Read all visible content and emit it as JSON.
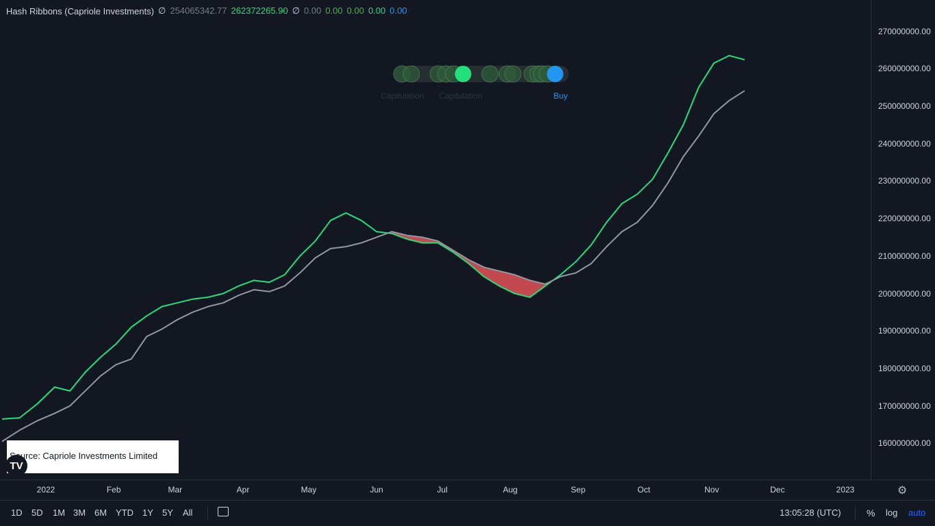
{
  "legend": {
    "title": "Hash Ribbons (Capriole Investments)",
    "values": [
      {
        "text": "∅",
        "color": "#d1d4dc"
      },
      {
        "text": "254065342.77",
        "color": "#787b86"
      },
      {
        "text": "262372265.90",
        "color": "#22e07a"
      },
      {
        "text": "∅",
        "color": "#d1d4dc"
      },
      {
        "text": "0.00",
        "color": "#787b86"
      },
      {
        "text": "0.00",
        "color": "#4caf50"
      },
      {
        "text": "0.00",
        "color": "#4caf50"
      },
      {
        "text": "0.00",
        "color": "#22e07a"
      },
      {
        "text": "0.00",
        "color": "#2196f3"
      }
    ]
  },
  "signals": {
    "labels": [
      {
        "text": "Capitulation",
        "color": "#2c3640"
      },
      {
        "text": "Capitulation",
        "color": "#2c3640"
      },
      {
        "text": "Buy",
        "color": "#2196f3"
      }
    ]
  },
  "source": {
    "text": "Source: Capriole Investments Limited",
    "logo": "TV"
  },
  "toolbar": {
    "ranges": [
      "1D",
      "5D",
      "1M",
      "3M",
      "6M",
      "YTD",
      "1Y",
      "5Y",
      "All"
    ],
    "time": "13:05:28 (UTC)",
    "percent": "%",
    "log": "log",
    "auto": "auto"
  },
  "colors": {
    "fast": "#22e07a",
    "slow": "#9598a1",
    "fill": "#f0565c",
    "buy": "#2196f3",
    "bg": "#131722"
  },
  "chart_data": {
    "type": "line",
    "title": "Hash Ribbons (Capriole Investments)",
    "y_ticks": [
      "270000000.00",
      "260000000.00",
      "250000000.00",
      "240000000.00",
      "230000000.00",
      "220000000.00",
      "210000000.00",
      "200000000.00",
      "190000000.00",
      "180000000.00",
      "170000000.00",
      "160000000.00"
    ],
    "y_tick_values": [
      270000000,
      260000000,
      250000000,
      240000000,
      230000000,
      220000000,
      210000000,
      200000000,
      190000000,
      180000000,
      170000000,
      160000000
    ],
    "x_ticks": [
      "2022",
      "Feb",
      "Mar",
      "Apr",
      "May",
      "Jun",
      "Jul",
      "Aug",
      "Sep",
      "Oct",
      "Nov",
      "Dec",
      "2023"
    ],
    "x_tick_dates": [
      "2022-01-01",
      "2022-02-01",
      "2022-03-01",
      "2022-04-01",
      "2022-05-01",
      "2022-06-01",
      "2022-07-01",
      "2022-08-01",
      "2022-09-01",
      "2022-10-01",
      "2022-11-01",
      "2022-12-01",
      "2023-01-01"
    ],
    "series": [
      {
        "name": "",
        "role": "fast",
        "color": "#22e07a",
        "points": [
          [
            "2021-12-12",
            166.5
          ],
          [
            "2021-12-20",
            166.8
          ],
          [
            "2021-12-28",
            170.5
          ],
          [
            "2022-01-05",
            175
          ],
          [
            "2022-01-12",
            174
          ],
          [
            "2022-01-19",
            179
          ],
          [
            "2022-01-26",
            183
          ],
          [
            "2022-02-02",
            186.5
          ],
          [
            "2022-02-09",
            191
          ],
          [
            "2022-02-16",
            194
          ],
          [
            "2022-02-23",
            196.5
          ],
          [
            "2022-03-02",
            197.5
          ],
          [
            "2022-03-09",
            198.5
          ],
          [
            "2022-03-16",
            199
          ],
          [
            "2022-03-23",
            200
          ],
          [
            "2022-03-30",
            202
          ],
          [
            "2022-04-06",
            203.5
          ],
          [
            "2022-04-13",
            203
          ],
          [
            "2022-04-20",
            205
          ],
          [
            "2022-04-27",
            210
          ],
          [
            "2022-05-04",
            214
          ],
          [
            "2022-05-11",
            219.5
          ],
          [
            "2022-05-18",
            221.5
          ],
          [
            "2022-05-25",
            219.5
          ],
          [
            "2022-06-01",
            216.5
          ],
          [
            "2022-06-08",
            216
          ],
          [
            "2022-06-15",
            214.5
          ],
          [
            "2022-06-22",
            213.5
          ],
          [
            "2022-06-29",
            213.5
          ],
          [
            "2022-07-06",
            211
          ],
          [
            "2022-07-13",
            208
          ],
          [
            "2022-07-20",
            204.5
          ],
          [
            "2022-07-27",
            202
          ],
          [
            "2022-08-03",
            200
          ],
          [
            "2022-08-10",
            199
          ],
          [
            "2022-08-17",
            202
          ],
          [
            "2022-08-24",
            205
          ],
          [
            "2022-08-31",
            208.5
          ],
          [
            "2022-09-07",
            213
          ],
          [
            "2022-09-14",
            219
          ],
          [
            "2022-09-21",
            224
          ],
          [
            "2022-09-28",
            226.5
          ],
          [
            "2022-10-05",
            230.5
          ],
          [
            "2022-10-12",
            237.5
          ],
          [
            "2022-10-19",
            245
          ],
          [
            "2022-10-26",
            255
          ],
          [
            "2022-11-02",
            261.5
          ],
          [
            "2022-11-09",
            263.5
          ],
          [
            "2022-11-16",
            262.4
          ]
        ]
      },
      {
        "name": "",
        "role": "slow",
        "color": "#9598a1",
        "points": [
          [
            "2021-12-12",
            160.5
          ],
          [
            "2021-12-20",
            163.5
          ],
          [
            "2021-12-28",
            166
          ],
          [
            "2022-01-05",
            168
          ],
          [
            "2022-01-12",
            170
          ],
          [
            "2022-01-19",
            174
          ],
          [
            "2022-01-26",
            178
          ],
          [
            "2022-02-02",
            181
          ],
          [
            "2022-02-09",
            182.5
          ],
          [
            "2022-02-16",
            188.5
          ],
          [
            "2022-02-23",
            190.5
          ],
          [
            "2022-03-02",
            193
          ],
          [
            "2022-03-09",
            195
          ],
          [
            "2022-03-16",
            196.5
          ],
          [
            "2022-03-23",
            197.5
          ],
          [
            "2022-03-30",
            199.5
          ],
          [
            "2022-04-06",
            201
          ],
          [
            "2022-04-13",
            200.5
          ],
          [
            "2022-04-20",
            202
          ],
          [
            "2022-04-27",
            205.5
          ],
          [
            "2022-05-04",
            209.5
          ],
          [
            "2022-05-11",
            212
          ],
          [
            "2022-05-18",
            212.5
          ],
          [
            "2022-05-25",
            213.5
          ],
          [
            "2022-06-01",
            215
          ],
          [
            "2022-06-08",
            216.5
          ],
          [
            "2022-06-15",
            215.5
          ],
          [
            "2022-06-22",
            215
          ],
          [
            "2022-06-29",
            214
          ],
          [
            "2022-07-06",
            211.5
          ],
          [
            "2022-07-13",
            209
          ],
          [
            "2022-07-20",
            207
          ],
          [
            "2022-07-27",
            206
          ],
          [
            "2022-08-03",
            205
          ],
          [
            "2022-08-10",
            203.5
          ],
          [
            "2022-08-17",
            202.5
          ],
          [
            "2022-08-24",
            204.5
          ],
          [
            "2022-08-31",
            205.5
          ],
          [
            "2022-09-07",
            208
          ],
          [
            "2022-09-14",
            212.5
          ],
          [
            "2022-09-21",
            216.5
          ],
          [
            "2022-09-28",
            219
          ],
          [
            "2022-10-05",
            223.5
          ],
          [
            "2022-10-12",
            229.5
          ],
          [
            "2022-10-19",
            236.5
          ],
          [
            "2022-10-26",
            242
          ],
          [
            "2022-11-02",
            248
          ],
          [
            "2022-11-09",
            251.5
          ],
          [
            "2022-11-16",
            254.1
          ]
        ]
      }
    ],
    "y_scale_millions": true,
    "ylim": [
      152500000,
      275000000
    ],
    "grid": false,
    "markers": [
      {
        "date": "2022-06-01",
        "color": "#2e5d3a"
      },
      {
        "date": "2022-06-06",
        "color": "#2e5d3a"
      },
      {
        "date": "2022-06-20",
        "color": "#2e5d3a"
      },
      {
        "date": "2022-06-24",
        "color": "#2e5d3a"
      },
      {
        "date": "2022-06-28",
        "color": "#2e5d3a"
      },
      {
        "date": "2022-07-03",
        "color": "#22e07a"
      },
      {
        "date": "2022-07-17",
        "color": "#2e5d3a"
      },
      {
        "date": "2022-07-26",
        "color": "#2e5d3a"
      },
      {
        "date": "2022-07-29",
        "color": "#2e5d3a"
      },
      {
        "date": "2022-08-08",
        "color": "#2e5d3a"
      },
      {
        "date": "2022-08-11",
        "color": "#2e5d3a"
      },
      {
        "date": "2022-08-13",
        "color": "#2e5d3a"
      },
      {
        "date": "2022-08-16",
        "color": "#2e5d3a"
      },
      {
        "date": "2022-08-20",
        "color": "#2196f3"
      }
    ]
  }
}
